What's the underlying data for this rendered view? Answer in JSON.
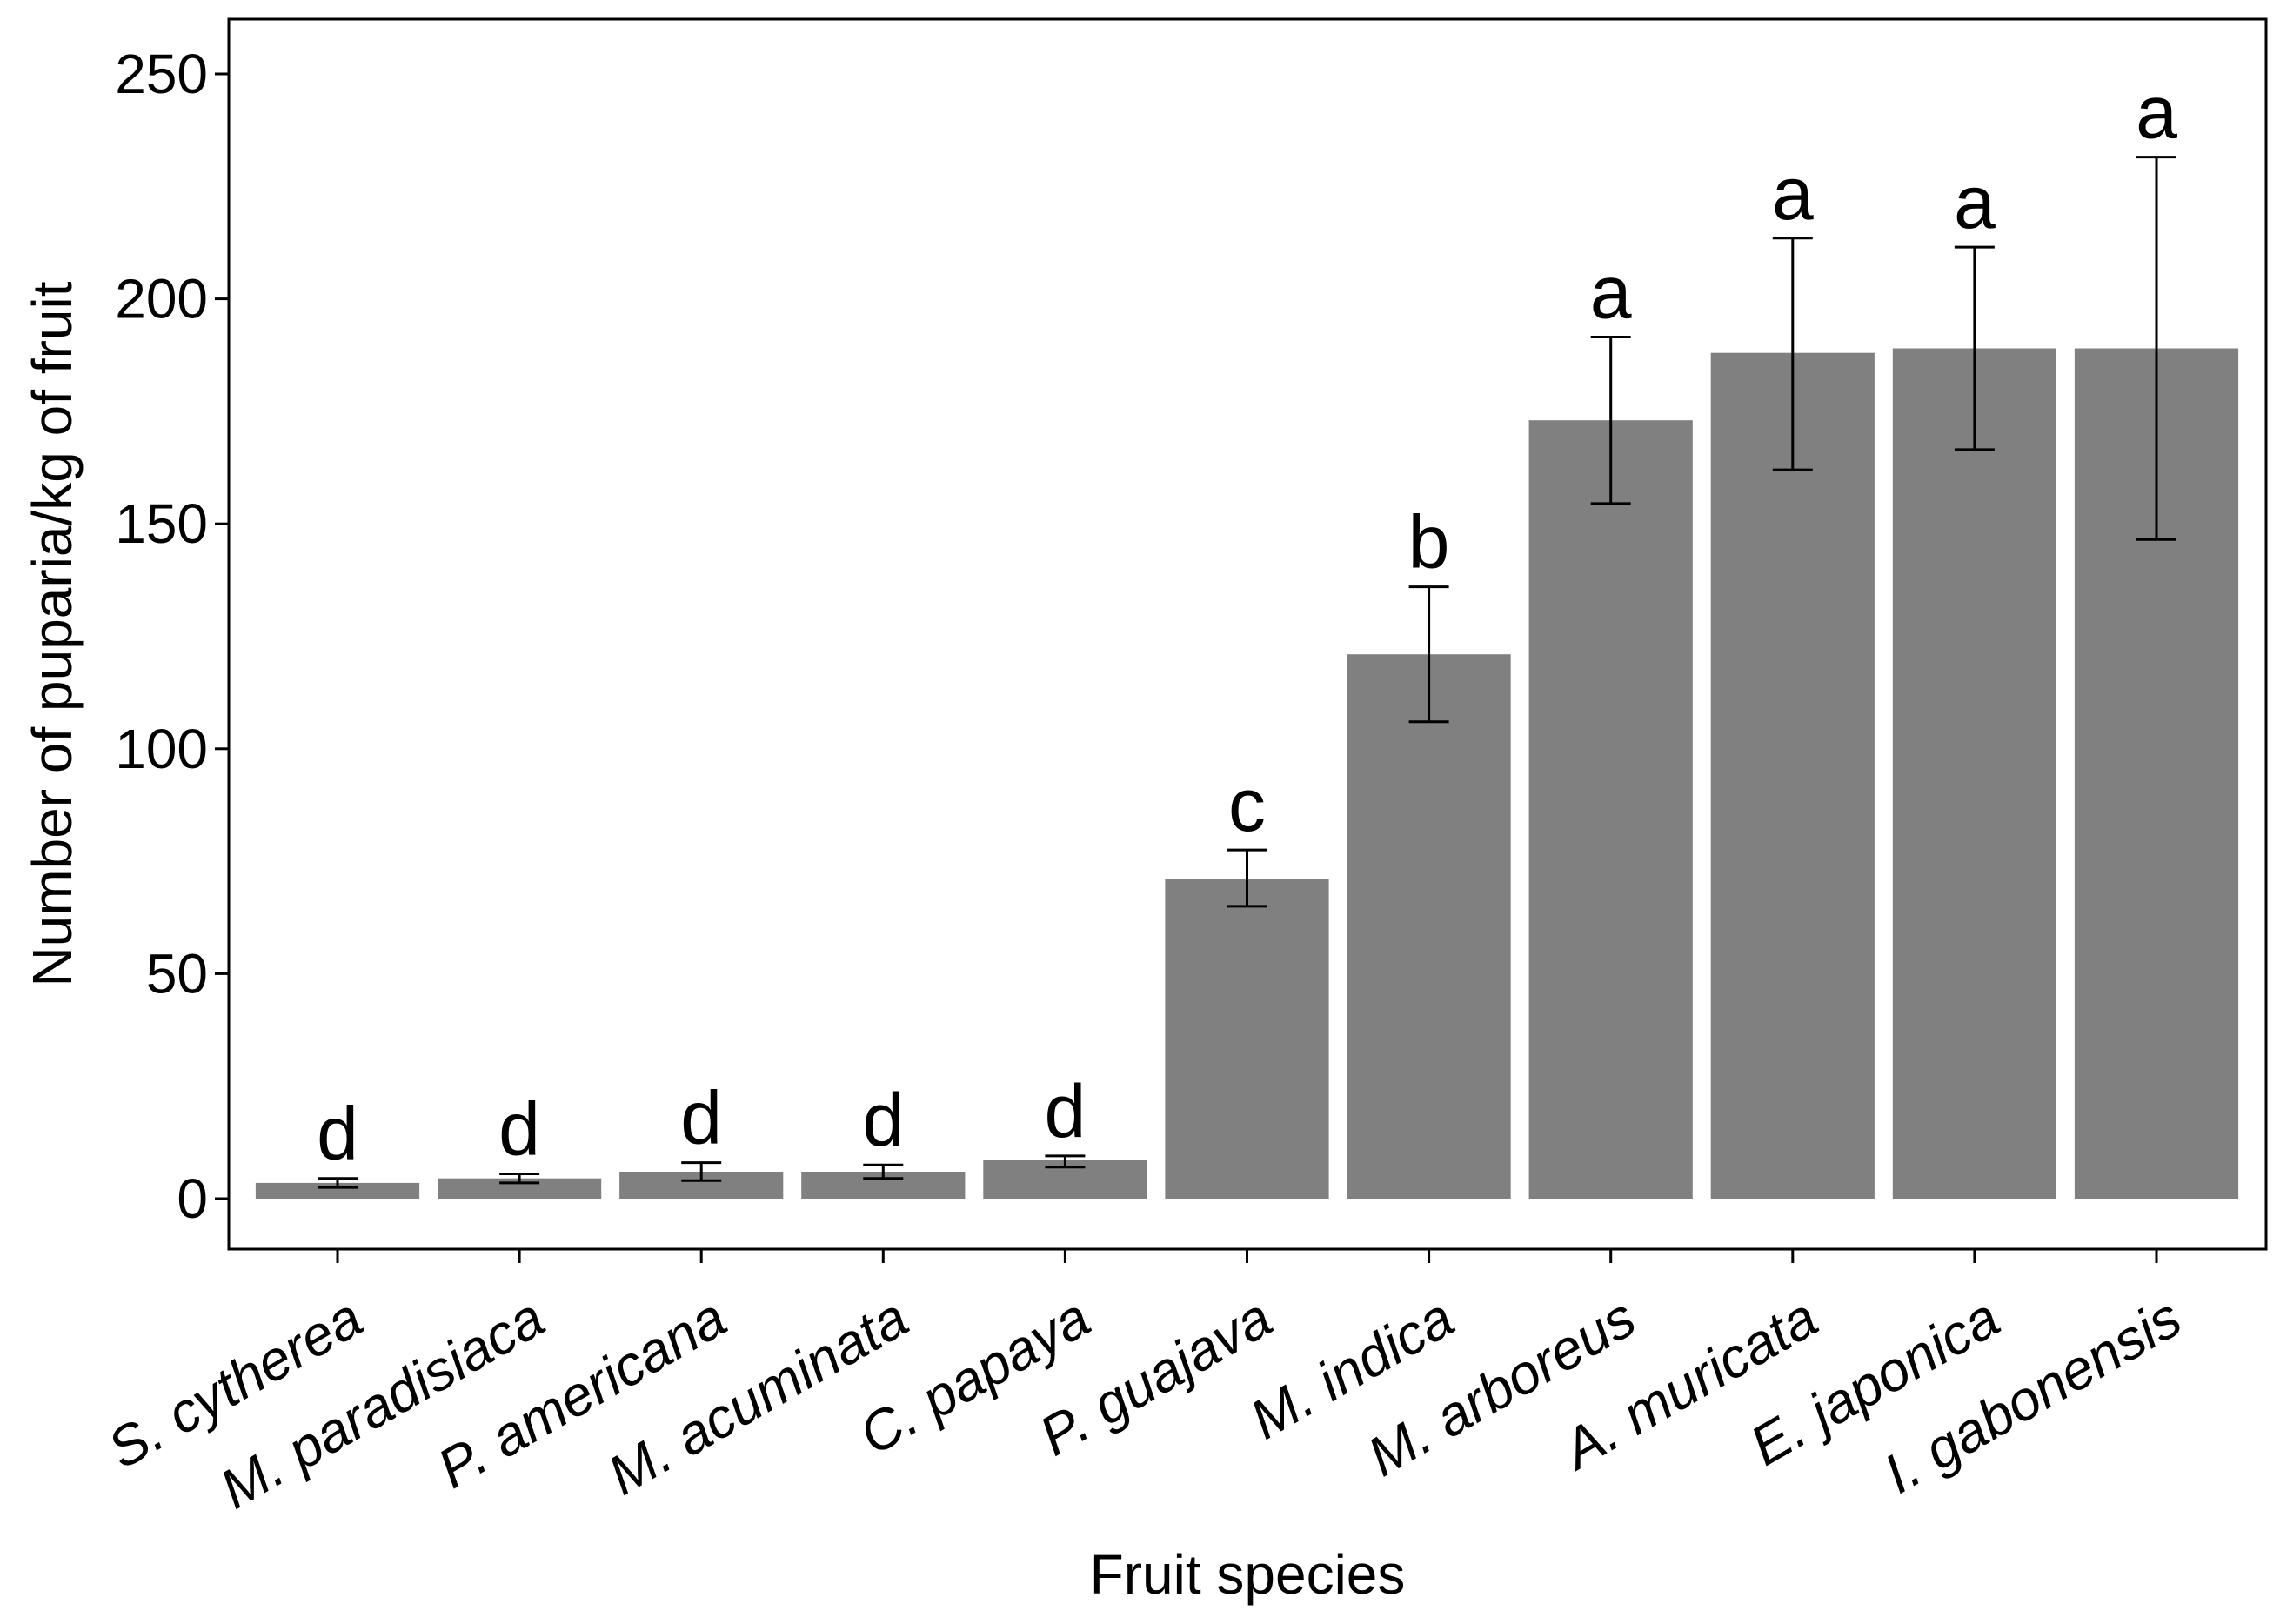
{
  "chart_data": {
    "type": "bar",
    "title": "",
    "xlabel": "Fruit species",
    "ylabel": "Number of puparia/kg of fruit",
    "ylim": [
      -12,
      262
    ],
    "yticks": [
      0,
      50,
      100,
      150,
      200,
      250
    ],
    "ytick_labels": [
      "0",
      "50",
      "100",
      "150",
      "200",
      "250"
    ],
    "grid": false,
    "bar_color": "#808080",
    "categories": [
      "S. cytherea",
      "M. paradisiaca",
      "P. americana",
      "M. acuminata",
      "C. papaya",
      "P. guajava",
      "M. indica",
      "M. arboreus",
      "A. muricata",
      "E. japonica",
      "I. gabonensis"
    ],
    "values": [
      3.5,
      4.5,
      6,
      6,
      8.5,
      71,
      121,
      173,
      188,
      189,
      189
    ],
    "error_upper": [
      4.5,
      5.5,
      8,
      7.5,
      9.5,
      77.5,
      136,
      191.5,
      213.5,
      211.5,
      231.5
    ],
    "error_lower": [
      2.5,
      3.5,
      4,
      4.5,
      7,
      65,
      106,
      154.5,
      162,
      166.5,
      146.5
    ],
    "annotations": [
      "d",
      "d",
      "d",
      "d",
      "d",
      "c",
      "b",
      "a",
      "a",
      "a",
      "a"
    ]
  }
}
